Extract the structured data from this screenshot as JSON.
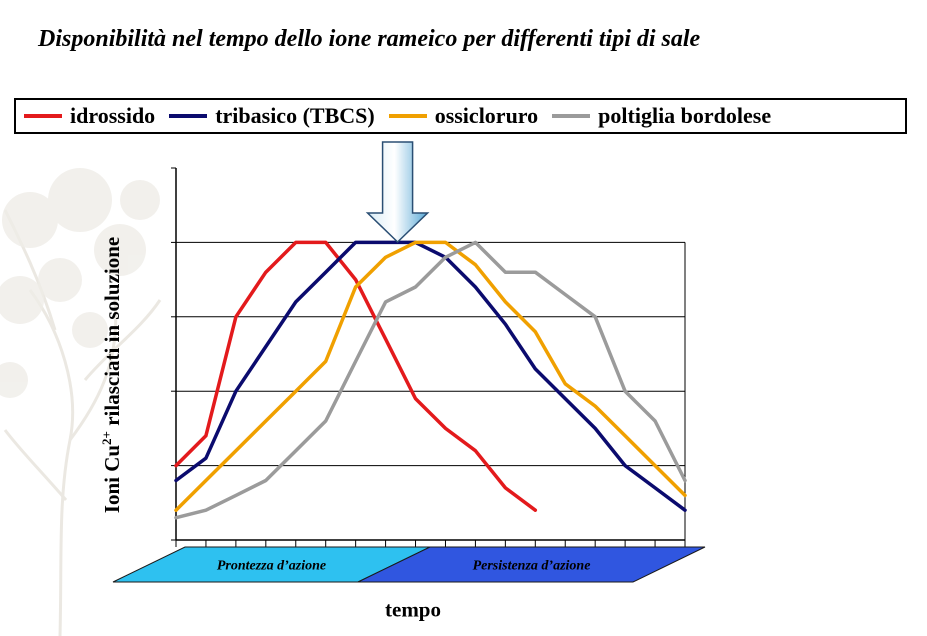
{
  "chart_data": {
    "type": "line",
    "title": "Disponibilità nel tempo dello ione rameico per differenti tipi di sale",
    "ylabel_pre": "Ioni Cu",
    "ylabel_sup": "2+",
    "ylabel_post": " rilasciati in soluzione",
    "xlabel": "tempo",
    "ylim": [
      0,
      5
    ],
    "xlim": [
      0,
      17
    ],
    "grid": true,
    "legend": "top",
    "x": [
      0,
      1,
      2,
      3,
      4,
      5,
      6,
      7,
      8,
      9,
      10,
      11,
      12,
      13,
      14,
      15,
      16,
      17
    ],
    "series": [
      {
        "name": "idrossido",
        "color": "#e31a1c",
        "values": [
          1.0,
          1.4,
          3.0,
          3.6,
          4.0,
          4.0,
          3.5,
          2.7,
          1.9,
          1.5,
          1.2,
          0.7,
          0.4,
          null,
          null,
          null,
          null,
          null
        ]
      },
      {
        "name": "tribasico (TBCS)",
        "color": "#0b0b6e",
        "values": [
          0.8,
          1.1,
          2.0,
          2.6,
          3.2,
          3.6,
          4.0,
          4.0,
          4.0,
          3.8,
          3.4,
          2.9,
          2.3,
          1.9,
          1.5,
          1.0,
          0.7,
          0.4
        ]
      },
      {
        "name": "ossicloruro",
        "color": "#f0a000",
        "values": [
          0.4,
          0.8,
          1.2,
          1.6,
          2.0,
          2.4,
          3.4,
          3.8,
          4.0,
          4.0,
          3.7,
          3.2,
          2.8,
          2.1,
          1.8,
          1.4,
          1.0,
          0.6
        ]
      },
      {
        "name": "poltiglia bordolese",
        "color": "#9b9b9b",
        "values": [
          0.3,
          0.4,
          0.6,
          0.8,
          1.2,
          1.6,
          2.4,
          3.2,
          3.4,
          3.8,
          4.0,
          3.6,
          3.6,
          3.3,
          3.0,
          2.0,
          1.6,
          0.8
        ]
      }
    ],
    "phases": [
      {
        "label": "Prontezza d’azione",
        "color": "#2ec1f0",
        "from": 0,
        "to": 8.3
      },
      {
        "label": "Persistenza d’azione",
        "color": "#3056e0",
        "from": 8.3,
        "to": 18
      }
    ],
    "arrow_at_x": 7
  }
}
